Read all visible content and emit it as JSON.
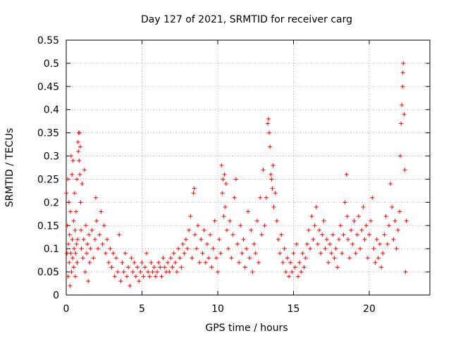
{
  "chart_data": {
    "type": "scatter",
    "title": "Day 127 of 2021, SRMTID for receiver carg",
    "xlabel": "GPS time / hours",
    "ylabel": "SRMTID / TECUs",
    "xlim": [
      0,
      24
    ],
    "ylim": [
      0,
      0.55
    ],
    "xticks": [
      0,
      5,
      10,
      15,
      20
    ],
    "xtick_labels": [
      "0",
      "5",
      "10",
      "15",
      "20"
    ],
    "yticks": [
      0,
      0.05,
      0.1,
      0.15,
      0.2,
      0.25,
      0.3,
      0.35,
      0.4,
      0.45,
      0.5,
      0.55
    ],
    "ytick_labels": [
      "0",
      "0.05",
      "0.1",
      "0.15",
      "0.2",
      "0.25",
      "0.3",
      "0.35",
      "0.4",
      "0.45",
      "0.5",
      "0.55"
    ],
    "grid": true,
    "marker": "plus",
    "series": [
      {
        "name": "SRMTID",
        "color": "#ff0000",
        "points": [
          [
            0.02,
            0.22
          ],
          [
            0.05,
            0.09
          ],
          [
            0.08,
            0.15
          ],
          [
            0.1,
            0.25
          ],
          [
            0.12,
            0.04
          ],
          [
            0.15,
            0.11
          ],
          [
            0.18,
            0.2
          ],
          [
            0.2,
            0.07
          ],
          [
            0.22,
            0.13
          ],
          [
            0.25,
            0.02
          ],
          [
            0.28,
            0.18
          ],
          [
            0.3,
            0.09
          ],
          [
            0.32,
            0.3
          ],
          [
            0.35,
            0.05
          ],
          [
            0.38,
            0.26
          ],
          [
            0.4,
            0.12
          ],
          [
            0.42,
            0.08
          ],
          [
            0.45,
            0.29
          ],
          [
            0.48,
            0.16
          ],
          [
            0.5,
            0.06
          ],
          [
            0.52,
            0.1
          ],
          [
            0.55,
            0.22
          ],
          [
            0.58,
            0.14
          ],
          [
            0.6,
            0.04
          ],
          [
            0.62,
            0.09
          ],
          [
            0.65,
            0.18
          ],
          [
            0.68,
            0.11
          ],
          [
            0.7,
            0.25
          ],
          [
            0.72,
            0.07
          ],
          [
            0.75,
            0.12
          ],
          [
            0.78,
            0.33
          ],
          [
            0.8,
            0.31
          ],
          [
            0.82,
            0.35
          ],
          [
            0.85,
            0.29
          ],
          [
            0.88,
            0.35
          ],
          [
            0.9,
            0.26
          ],
          [
            0.92,
            0.32
          ],
          [
            0.95,
            0.2
          ],
          [
            0.98,
            0.14
          ],
          [
            1.0,
            0.1
          ],
          [
            1.05,
            0.24
          ],
          [
            1.1,
            0.08
          ],
          [
            1.15,
            0.12
          ],
          [
            1.2,
            0.27
          ],
          [
            1.25,
            0.05
          ],
          [
            1.3,
            0.15
          ],
          [
            1.35,
            0.09
          ],
          [
            1.4,
            0.11
          ],
          [
            1.45,
            0.03
          ],
          [
            1.5,
            0.13
          ],
          [
            1.55,
            0.07
          ],
          [
            1.6,
            0.1
          ],
          [
            1.7,
            0.14
          ],
          [
            1.8,
            0.08
          ],
          [
            1.9,
            0.12
          ],
          [
            1.95,
            0.21
          ],
          [
            2.0,
            0.16
          ],
          [
            2.1,
            0.1
          ],
          [
            2.2,
            0.13
          ],
          [
            2.3,
            0.18
          ],
          [
            2.4,
            0.11
          ],
          [
            2.5,
            0.15
          ],
          [
            2.6,
            0.09
          ],
          [
            2.7,
            0.12
          ],
          [
            2.8,
            0.07
          ],
          [
            2.9,
            0.1
          ],
          [
            3.0,
            0.06
          ],
          [
            3.1,
            0.09
          ],
          [
            3.2,
            0.04
          ],
          [
            3.3,
            0.08
          ],
          [
            3.4,
            0.05
          ],
          [
            3.5,
            0.13
          ],
          [
            3.6,
            0.03
          ],
          [
            3.7,
            0.07
          ],
          [
            3.8,
            0.05
          ],
          [
            3.9,
            0.09
          ],
          [
            4.0,
            0.04
          ],
          [
            4.1,
            0.06
          ],
          [
            4.2,
            0.02
          ],
          [
            4.3,
            0.08
          ],
          [
            4.4,
            0.05
          ],
          [
            4.5,
            0.07
          ],
          [
            4.6,
            0.04
          ],
          [
            4.7,
            0.06
          ],
          [
            4.8,
            0.03
          ],
          [
            4.9,
            0.05
          ],
          [
            5.0,
            0.07
          ],
          [
            5.1,
            0.04
          ],
          [
            5.2,
            0.06
          ],
          [
            5.3,
            0.09
          ],
          [
            5.4,
            0.05
          ],
          [
            5.5,
            0.04
          ],
          [
            5.6,
            0.07
          ],
          [
            5.7,
            0.05
          ],
          [
            5.8,
            0.06
          ],
          [
            5.9,
            0.04
          ],
          [
            6.0,
            0.05
          ],
          [
            6.1,
            0.07
          ],
          [
            6.2,
            0.06
          ],
          [
            6.3,
            0.04
          ],
          [
            6.4,
            0.08
          ],
          [
            6.5,
            0.06
          ],
          [
            6.6,
            0.05
          ],
          [
            6.7,
            0.07
          ],
          [
            6.8,
            0.05
          ],
          [
            6.9,
            0.08
          ],
          [
            7.0,
            0.06
          ],
          [
            7.1,
            0.09
          ],
          [
            7.2,
            0.07
          ],
          [
            7.3,
            0.05
          ],
          [
            7.4,
            0.1
          ],
          [
            7.5,
            0.08
          ],
          [
            7.6,
            0.06
          ],
          [
            7.7,
            0.11
          ],
          [
            7.8,
            0.09
          ],
          [
            7.9,
            0.12
          ],
          [
            8.0,
            0.1
          ],
          [
            8.1,
            0.14
          ],
          [
            8.2,
            0.17
          ],
          [
            8.3,
            0.08
          ],
          [
            8.4,
            0.22
          ],
          [
            8.45,
            0.23
          ],
          [
            8.5,
            0.13
          ],
          [
            8.6,
            0.1
          ],
          [
            8.7,
            0.15
          ],
          [
            8.8,
            0.07
          ],
          [
            8.9,
            0.12
          ],
          [
            9.0,
            0.09
          ],
          [
            9.1,
            0.14
          ],
          [
            9.2,
            0.07
          ],
          [
            9.3,
            0.11
          ],
          [
            9.4,
            0.08
          ],
          [
            9.5,
            0.13
          ],
          [
            9.6,
            0.06
          ],
          [
            9.7,
            0.1
          ],
          [
            9.8,
            0.16
          ],
          [
            9.9,
            0.08
          ],
          [
            10.0,
            0.05
          ],
          [
            10.1,
            0.12
          ],
          [
            10.2,
            0.09
          ],
          [
            10.25,
            0.28
          ],
          [
            10.3,
            0.22
          ],
          [
            10.35,
            0.25
          ],
          [
            10.4,
            0.17
          ],
          [
            10.45,
            0.26
          ],
          [
            10.5,
            0.19
          ],
          [
            10.55,
            0.24
          ],
          [
            10.6,
            0.14
          ],
          [
            10.7,
            0.1
          ],
          [
            10.8,
            0.16
          ],
          [
            10.9,
            0.08
          ],
          [
            11.0,
            0.13
          ],
          [
            11.1,
            0.21
          ],
          [
            11.2,
            0.25
          ],
          [
            11.3,
            0.11
          ],
          [
            11.4,
            0.07
          ],
          [
            11.5,
            0.15
          ],
          [
            11.6,
            0.09
          ],
          [
            11.7,
            0.12
          ],
          [
            11.8,
            0.06
          ],
          [
            11.9,
            0.1
          ],
          [
            12.0,
            0.18
          ],
          [
            12.1,
            0.08
          ],
          [
            12.2,
            0.14
          ],
          [
            12.3,
            0.05
          ],
          [
            12.4,
            0.11
          ],
          [
            12.5,
            0.09
          ],
          [
            12.6,
            0.16
          ],
          [
            12.7,
            0.07
          ],
          [
            12.8,
            0.21
          ],
          [
            12.9,
            0.13
          ],
          [
            13.0,
            0.27
          ],
          [
            13.1,
            0.15
          ],
          [
            13.2,
            0.21
          ],
          [
            13.3,
            0.37
          ],
          [
            13.35,
            0.38
          ],
          [
            13.4,
            0.35
          ],
          [
            13.45,
            0.32
          ],
          [
            13.5,
            0.26
          ],
          [
            13.55,
            0.25
          ],
          [
            13.6,
            0.23
          ],
          [
            13.65,
            0.28
          ],
          [
            13.7,
            0.19
          ],
          [
            13.8,
            0.22
          ],
          [
            13.9,
            0.16
          ],
          [
            14.0,
            0.12
          ],
          [
            14.1,
            0.09
          ],
          [
            14.2,
            0.13
          ],
          [
            14.3,
            0.07
          ],
          [
            14.4,
            0.1
          ],
          [
            14.5,
            0.05
          ],
          [
            14.6,
            0.08
          ],
          [
            14.7,
            0.04
          ],
          [
            14.8,
            0.07
          ],
          [
            14.9,
            0.05
          ],
          [
            15.0,
            0.09
          ],
          [
            15.1,
            0.06
          ],
          [
            15.2,
            0.11
          ],
          [
            15.3,
            0.04
          ],
          [
            15.4,
            0.07
          ],
          [
            15.5,
            0.05
          ],
          [
            15.6,
            0.09
          ],
          [
            15.7,
            0.06
          ],
          [
            15.8,
            0.08
          ],
          [
            15.9,
            0.11
          ],
          [
            16.0,
            0.14
          ],
          [
            16.1,
            0.1
          ],
          [
            16.2,
            0.17
          ],
          [
            16.3,
            0.12
          ],
          [
            16.4,
            0.15
          ],
          [
            16.5,
            0.19
          ],
          [
            16.6,
            0.11
          ],
          [
            16.7,
            0.14
          ],
          [
            16.8,
            0.09
          ],
          [
            16.9,
            0.13
          ],
          [
            17.0,
            0.16
          ],
          [
            17.1,
            0.1
          ],
          [
            17.2,
            0.12
          ],
          [
            17.3,
            0.07
          ],
          [
            17.4,
            0.11
          ],
          [
            17.5,
            0.09
          ],
          [
            17.6,
            0.13
          ],
          [
            17.7,
            0.08
          ],
          [
            17.8,
            0.1
          ],
          [
            17.9,
            0.06
          ],
          [
            18.0,
            0.12
          ],
          [
            18.1,
            0.15
          ],
          [
            18.2,
            0.09
          ],
          [
            18.3,
            0.13
          ],
          [
            18.4,
            0.2
          ],
          [
            18.5,
            0.26
          ],
          [
            18.55,
            0.17
          ],
          [
            18.6,
            0.12
          ],
          [
            18.7,
            0.08
          ],
          [
            18.8,
            0.14
          ],
          [
            18.9,
            0.11
          ],
          [
            19.0,
            0.16
          ],
          [
            19.1,
            0.09
          ],
          [
            19.2,
            0.13
          ],
          [
            19.3,
            0.17
          ],
          [
            19.4,
            0.1
          ],
          [
            19.5,
            0.14
          ],
          [
            19.6,
            0.19
          ],
          [
            19.7,
            0.12
          ],
          [
            19.8,
            0.15
          ],
          [
            19.9,
            0.08
          ],
          [
            20.0,
            0.13
          ],
          [
            20.1,
            0.16
          ],
          [
            20.2,
            0.21
          ],
          [
            20.3,
            0.1
          ],
          [
            20.4,
            0.07
          ],
          [
            20.5,
            0.12
          ],
          [
            20.6,
            0.08
          ],
          [
            20.7,
            0.11
          ],
          [
            20.8,
            0.06
          ],
          [
            20.9,
            0.09
          ],
          [
            21.0,
            0.13
          ],
          [
            21.1,
            0.17
          ],
          [
            21.2,
            0.11
          ],
          [
            21.3,
            0.15
          ],
          [
            21.4,
            0.24
          ],
          [
            21.5,
            0.19
          ],
          [
            21.6,
            0.12
          ],
          [
            21.7,
            0.16
          ],
          [
            21.8,
            0.1
          ],
          [
            21.9,
            0.14
          ],
          [
            22.0,
            0.18
          ],
          [
            22.05,
            0.3
          ],
          [
            22.1,
            0.37
          ],
          [
            22.15,
            0.41
          ],
          [
            22.2,
            0.45
          ],
          [
            22.22,
            0.48
          ],
          [
            22.25,
            0.5
          ],
          [
            22.3,
            0.39
          ],
          [
            22.35,
            0.27
          ],
          [
            22.4,
            0.05
          ],
          [
            22.45,
            0.16
          ]
        ]
      }
    ]
  }
}
